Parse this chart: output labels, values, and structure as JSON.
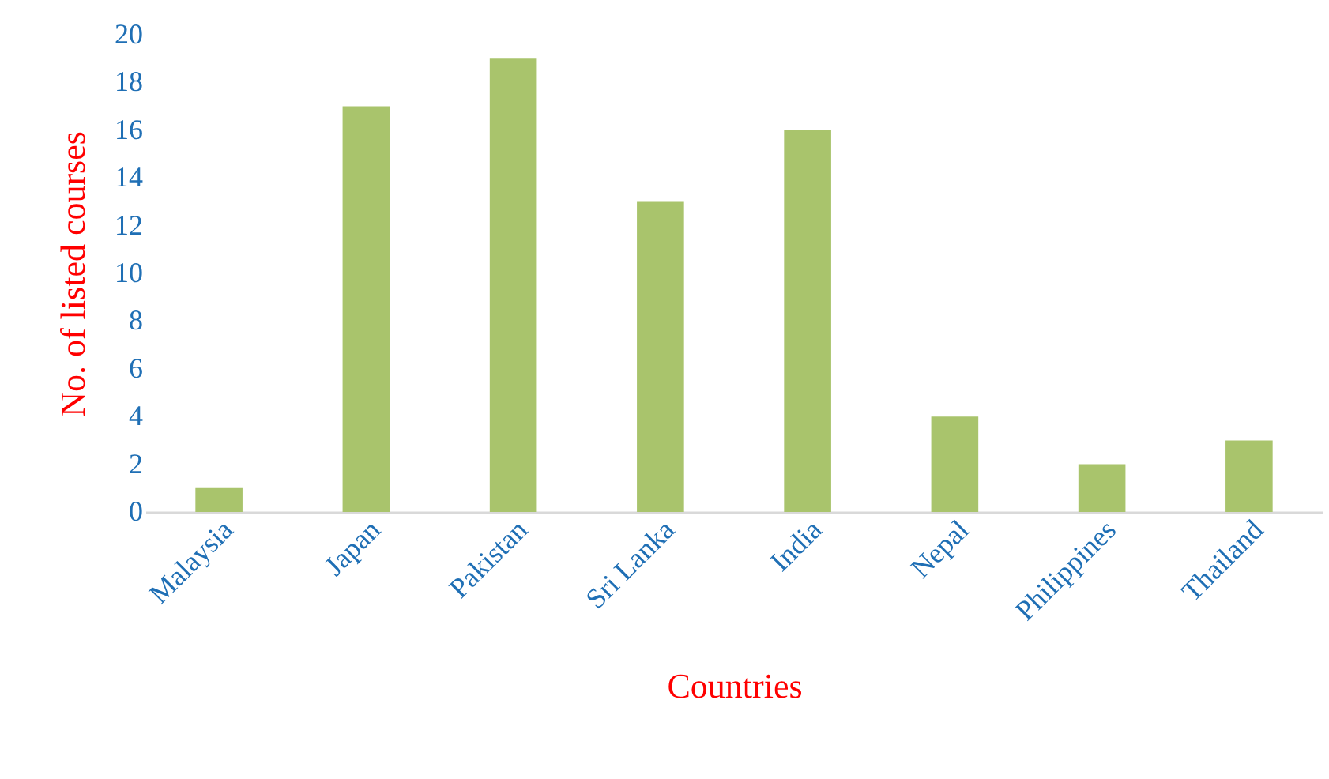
{
  "chart_data": {
    "type": "bar",
    "xlabel": "Countries",
    "ylabel": "No. of listed courses",
    "categories": [
      "Malaysia",
      "Japan",
      "Pakistan",
      "Sri Lanka",
      "India",
      "Nepal",
      "Philippines",
      "Thailand"
    ],
    "values": [
      1,
      17,
      19,
      13,
      16,
      4,
      2,
      3
    ],
    "color": "#a9c46c",
    "ylim": [
      0,
      20
    ],
    "yticks": [
      0,
      2,
      4,
      6,
      8,
      10,
      12,
      14,
      16,
      18,
      20
    ],
    "grid": false
  }
}
